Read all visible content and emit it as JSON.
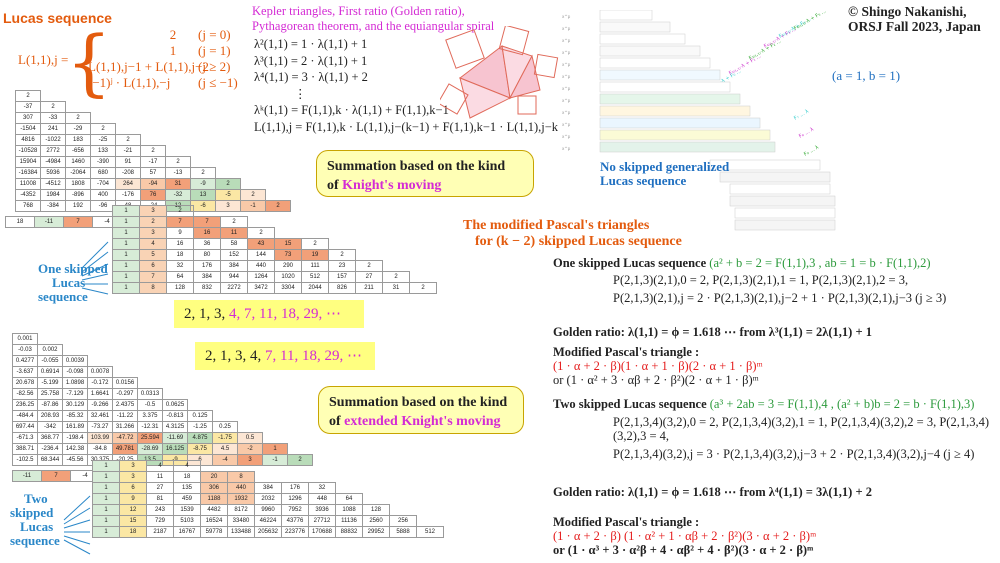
{
  "copyright": {
    "line1": "© Shingo Nakanishi,",
    "line2": "ORSJ Fall 2023, Japan"
  },
  "lucas": {
    "title": "Lucas sequence",
    "lhs": "L(1,1),j =",
    "cases": [
      {
        "expr": "2",
        "cond": "(j = 0)"
      },
      {
        "expr": "1",
        "cond": "(j = 1)"
      },
      {
        "expr": "L(1,1),j−1 + L(1,1),j−2",
        "cond": "(j ≥ 2)"
      },
      {
        "expr": "(−1)ʲ · L(1,1),−j",
        "cond": "(j ≤ −1)"
      }
    ]
  },
  "kepler": {
    "title1": "Kepler triangles, First ratio (Golden ratio),",
    "title2": "Pythagorean theorem, and the equiangular spiral",
    "lines": [
      "λ²(1,1) = 1 · λ(1,1) + 1",
      "λ³(1,1) = 2 · λ(1,1) + 1",
      "λ⁴(1,1) = 3 · λ(1,1) + 2",
      "⋮",
      "λᵏ(1,1) = F(1,1),k · λ(1,1) + F(1,1),k−1",
      "L(1,1),j = F(1,1),k · L(1,1),j−(k−1) + F(1,1),k−1 · L(1,1),j−k"
    ]
  },
  "param": "(a = 1, b = 1)",
  "no_skip": {
    "line1": "No skipped generalized",
    "line2": "Lucas sequence"
  },
  "bubble1": {
    "line1": "Summation based on the kind",
    "line2a": "of ",
    "line2b": "Knight's moving"
  },
  "bubble2": {
    "line1": "Summation based on the kind",
    "line2a": "of ",
    "line2b": "extended Knight's moving"
  },
  "modified": {
    "line1": "The modified Pascal's triangles",
    "line2": "for (k − 2) skipped Lucas sequence"
  },
  "seq1": {
    "black": "2, 1, 3, ",
    "colored": "4, 7, 11, 18, 29, ⋯"
  },
  "seq2": {
    "black": "2, 1, 3, 4, ",
    "colored": "7, 11, 18, 29, ⋯"
  },
  "one_skip_label": [
    "One skipped",
    "Lucas",
    "sequence"
  ],
  "two_skip_label": [
    "Two",
    "skipped",
    "Lucas",
    "sequence"
  ],
  "right": {
    "one_title": "One skipped Lucas sequence",
    "one_cond": "(a² + b = 2 = F(1,1),3 , ab = 1 = b · F(1,1),2)",
    "one_l1": "P(2,1,3)(2,1),0 = 2, P(2,1,3)(2,1),1 = 1, P(2,1,3)(2,1),2 = 3,",
    "one_l2": "P(2,1,3)(2,1),j = 2 · P(2,1,3)(2,1),j−2 + 1 · P(2,1,3)(2,1),j−3   (j ≥ 3)",
    "golden1": "Golden ratio: λ(1,1) = ϕ = 1.618 ⋯  from λ³(1,1) = 2λ(1,1) + 1",
    "mod1_title": "Modified Pascal's triangle :",
    "mod1_l1": "(1 · α + 2 · β)(1 · α + 1 · β)(2 · α + 1 · β)ᵐ",
    "mod1_l2": "or  (1 · α² + 3 · αβ + 2 · β²)(2 · α + 1 · β)ᵐ",
    "two_title": "Two skipped Lucas sequence",
    "two_cond": "(a³ + 2ab = 3 = F(1,1),4 , (a² + b)b = 2 = b · F(1,1),3)",
    "two_l1": "P(2,1,3,4)(3,2),0 = 2, P(2,1,3,4)(3,2),1 = 1, P(2,1,3,4)(3,2),2 = 3, P(2,1,3,4)(3,2),3 = 4,",
    "two_l2": "P(2,1,3,4)(3,2),j = 3 · P(2,1,3,4)(3,2),j−3 + 2 · P(2,1,3,4)(3,2),j−4   (j ≥ 4)",
    "golden2": "Golden ratio: λ(1,1) = ϕ = 1.618 ⋯  from λ⁴(1,1) = 3λ(1,1) + 2",
    "mod2_title": "Modified Pascal's triangle :",
    "mod2_l1": "(1 · α + 2 · β) (1 · α² + 1 · αβ + 2 · β²)(3 · α + 2 · β)ᵐ",
    "mod2_l2": "or (1 · α³ + 3 · α²β + 4 · αβ² + 4 · β²)(3 · α + 2 · β)ᵐ"
  },
  "top_left_table": {
    "rows": [
      [
        "2"
      ],
      [
        "-37",
        "2"
      ],
      [
        "307",
        "-33",
        "2"
      ],
      [
        "-1504",
        "241",
        "-29",
        "2"
      ],
      [
        "4816",
        "-1022",
        "183",
        "-25",
        "2"
      ],
      [
        "-10528",
        "2772",
        "-656",
        "133",
        "-21",
        "2"
      ],
      [
        "15904",
        "-4984",
        "1460",
        "-390",
        "91",
        "-17",
        "2"
      ],
      [
        "-16384",
        "5936",
        "-2064",
        "680",
        "-208",
        "57",
        "-13",
        "2"
      ],
      [
        "11008",
        "-4512",
        "1808",
        "-704",
        "264",
        "-94",
        "31",
        "-9",
        "2"
      ],
      [
        "-4352",
        "1984",
        "-896",
        "400",
        "-176",
        "76",
        "-32",
        "13",
        "-5",
        "2"
      ],
      [
        "768",
        "-384",
        "192",
        "-96",
        "48",
        "-24",
        "12",
        "-6",
        "3",
        "-1",
        "2"
      ]
    ]
  },
  "top_right_table": {
    "rows": [
      [
        "1",
        "3",
        "2"
      ],
      [
        "1",
        "2",
        "7",
        "7",
        "2"
      ],
      [
        "1",
        "3",
        "9",
        "16",
        "11",
        "2"
      ],
      [
        "1",
        "4",
        "16",
        "36",
        "58",
        "43",
        "15",
        "2"
      ],
      [
        "1",
        "5",
        "18",
        "80",
        "152",
        "144",
        "73",
        "19",
        "2"
      ],
      [
        "1",
        "6",
        "32",
        "176",
        "384",
        "440",
        "290",
        "111",
        "23",
        "2"
      ],
      [
        "1",
        "7",
        "64",
        "384",
        "944",
        "1264",
        "1020",
        "512",
        "157",
        "27",
        "2"
      ],
      [
        "1",
        "8",
        "128",
        "832",
        "2272",
        "3472",
        "3304",
        "2044",
        "826",
        "211",
        "31",
        "2"
      ]
    ],
    "left_col": [
      "-1",
      "1",
      "4",
      "11",
      "29",
      "76",
      "199"
    ],
    "left_col2": [
      "2",
      "3",
      "7",
      "18",
      "47",
      "123",
      "322"
    ]
  },
  "top_row_strip": [
    "18",
    "-11",
    "7",
    "-4",
    "3"
  ],
  "bottom_left_table": {
    "rows": [
      [
        "0.001"
      ],
      [
        "-0.03",
        "0.002"
      ],
      [
        "0.4277",
        "-0.055",
        "0.0039"
      ],
      [
        "-3.637",
        "0.6914",
        "-0.098",
        "0.0078"
      ],
      [
        "20.678",
        "-5.199",
        "1.0898",
        "-0.172",
        "0.0156"
      ],
      [
        "-82.56",
        "25.758",
        "-7.129",
        "1.6641",
        "-0.297",
        "0.0313"
      ],
      [
        "236.25",
        "-87.86",
        "30.129",
        "-9.266",
        "2.4375",
        "-0.5",
        "0.0625"
      ],
      [
        "-484.4",
        "208.93",
        "-85.32",
        "32.461",
        "-11.22",
        "3.375",
        "-0.813",
        "0.125"
      ],
      [
        "697.44",
        "-342",
        "161.89",
        "-73.27",
        "31.266",
        "-12.31",
        "4.3125",
        "-1.25",
        "0.25"
      ],
      [
        "-671.3",
        "368.77",
        "-198.4",
        "103.99",
        "-47.72",
        "25.594",
        "-11.69",
        "4.875",
        "-1.75",
        "0.5"
      ],
      [
        "388.71",
        "-236.4",
        "142.38",
        "-84.8",
        "49.781",
        "-28.69",
        "16.125",
        "-8.75",
        "4.5",
        "-2",
        "1"
      ],
      [
        "-102.5",
        "68.344",
        "-45.56",
        "30.375",
        "-20.25",
        "13.5",
        "-9",
        "6",
        "-4",
        "3",
        "-1",
        "2"
      ]
    ]
  },
  "bottom_strip": [
    "-11",
    "7",
    "-4",
    "3"
  ],
  "bottom_right_table": {
    "rows": [
      [
        "1",
        "3",
        "4",
        "4"
      ],
      [
        "1",
        "3",
        "11",
        "18",
        "20",
        "8"
      ],
      [
        "1",
        "6",
        "27",
        "135",
        "306",
        "440",
        "384",
        "176",
        "32"
      ],
      [
        "1",
        "9",
        "81",
        "459",
        "1188",
        "1932",
        "2032",
        "1296",
        "448",
        "64"
      ],
      [
        "1",
        "12",
        "243",
        "1539",
        "4482",
        "8172",
        "9960",
        "7952",
        "3936",
        "1088",
        "128"
      ],
      [
        "1",
        "15",
        "729",
        "5103",
        "16524",
        "33480",
        "46224",
        "43776",
        "27712",
        "11136",
        "2560",
        "256"
      ],
      [
        "1",
        "18",
        "2187",
        "16767",
        "59778",
        "133488",
        "205632",
        "223776",
        "170688",
        "88832",
        "29952",
        "5888",
        "512"
      ]
    ],
    "left_col": [
      "1",
      "4",
      "11",
      "29",
      "76",
      "199"
    ],
    "left_col2": [
      "3",
      "7",
      "18",
      "47",
      "123",
      "322"
    ]
  }
}
